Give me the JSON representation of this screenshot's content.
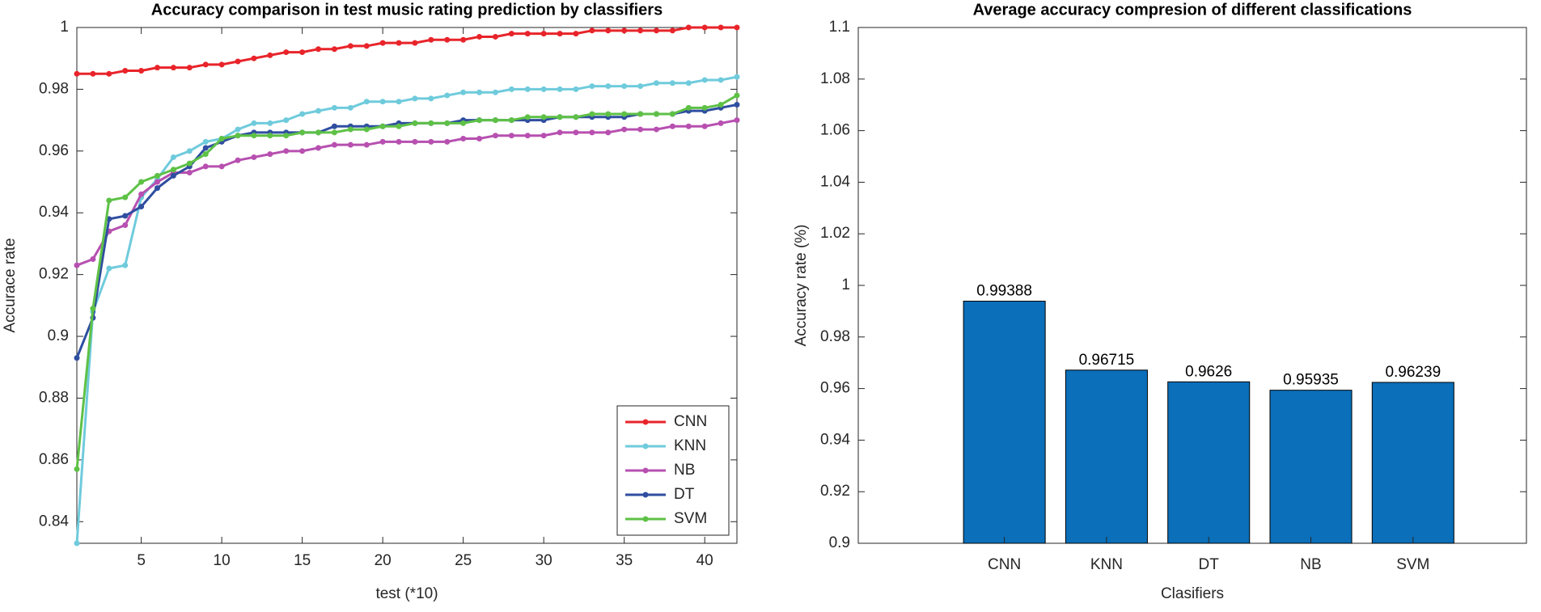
{
  "chart_data": [
    {
      "type": "line",
      "title": "Accuracy comparison in test music rating prediction by classifiers",
      "x_label": "test (*10)",
      "y_label": "Accurace rate",
      "x": [
        1,
        2,
        3,
        4,
        5,
        6,
        7,
        8,
        9,
        10,
        11,
        12,
        13,
        14,
        15,
        16,
        17,
        18,
        19,
        20,
        21,
        22,
        23,
        24,
        25,
        26,
        27,
        28,
        29,
        30,
        31,
        32,
        33,
        34,
        35,
        36,
        37,
        38,
        39,
        40,
        41,
        42
      ],
      "xlim": [
        1,
        42
      ],
      "xticks": [
        5,
        10,
        15,
        20,
        25,
        30,
        35,
        40
      ],
      "ylim": [
        0.833,
        1
      ],
      "yticks": [
        0.84,
        0.86,
        0.88,
        0.9,
        0.92,
        0.94,
        0.96,
        0.98,
        1
      ],
      "legend": "lower right",
      "series": [
        {
          "name": "CNN",
          "color": "#e8242a",
          "values": [
            0.985,
            0.985,
            0.985,
            0.986,
            0.986,
            0.987,
            0.987,
            0.987,
            0.988,
            0.988,
            0.989,
            0.99,
            0.991,
            0.992,
            0.992,
            0.993,
            0.993,
            0.994,
            0.994,
            0.995,
            0.995,
            0.995,
            0.996,
            0.996,
            0.996,
            0.997,
            0.997,
            0.998,
            0.998,
            0.998,
            0.998,
            0.998,
            0.999,
            0.999,
            0.999,
            0.999,
            0.999,
            0.999,
            1.0,
            1.0,
            1.0,
            1.0
          ]
        },
        {
          "name": "KNN",
          "color": "#6fcbdc",
          "values": [
            0.833,
            0.908,
            0.922,
            0.923,
            0.945,
            0.951,
            0.958,
            0.96,
            0.963,
            0.964,
            0.967,
            0.969,
            0.969,
            0.97,
            0.972,
            0.973,
            0.974,
            0.974,
            0.976,
            0.976,
            0.976,
            0.977,
            0.977,
            0.978,
            0.979,
            0.979,
            0.979,
            0.98,
            0.98,
            0.98,
            0.98,
            0.98,
            0.981,
            0.981,
            0.981,
            0.981,
            0.982,
            0.982,
            0.982,
            0.983,
            0.983,
            0.984
          ]
        },
        {
          "name": "NB",
          "color": "#b750b0",
          "values": [
            0.923,
            0.925,
            0.934,
            0.936,
            0.946,
            0.95,
            0.953,
            0.953,
            0.955,
            0.955,
            0.957,
            0.958,
            0.959,
            0.96,
            0.96,
            0.961,
            0.962,
            0.962,
            0.962,
            0.963,
            0.963,
            0.963,
            0.963,
            0.963,
            0.964,
            0.964,
            0.965,
            0.965,
            0.965,
            0.965,
            0.966,
            0.966,
            0.966,
            0.966,
            0.967,
            0.967,
            0.967,
            0.968,
            0.968,
            0.968,
            0.969,
            0.97
          ]
        },
        {
          "name": "DT",
          "color": "#2f4ea0",
          "values": [
            0.893,
            0.906,
            0.938,
            0.939,
            0.942,
            0.948,
            0.952,
            0.955,
            0.961,
            0.963,
            0.965,
            0.966,
            0.966,
            0.966,
            0.966,
            0.966,
            0.968,
            0.968,
            0.968,
            0.968,
            0.969,
            0.969,
            0.969,
            0.969,
            0.97,
            0.97,
            0.97,
            0.97,
            0.97,
            0.97,
            0.971,
            0.971,
            0.971,
            0.971,
            0.971,
            0.972,
            0.972,
            0.972,
            0.973,
            0.973,
            0.974,
            0.975
          ]
        },
        {
          "name": "SVM",
          "color": "#5ec146",
          "values": [
            0.857,
            0.909,
            0.944,
            0.945,
            0.95,
            0.952,
            0.954,
            0.956,
            0.959,
            0.964,
            0.965,
            0.965,
            0.965,
            0.965,
            0.966,
            0.966,
            0.966,
            0.967,
            0.967,
            0.968,
            0.968,
            0.969,
            0.969,
            0.969,
            0.969,
            0.97,
            0.97,
            0.97,
            0.971,
            0.971,
            0.971,
            0.971,
            0.972,
            0.972,
            0.972,
            0.972,
            0.972,
            0.972,
            0.974,
            0.974,
            0.975,
            0.978
          ]
        }
      ]
    },
    {
      "type": "bar",
      "title": "Average accuracy compresion of different classifications",
      "x_label": "Clasifiers",
      "y_label": "Accuracy rate (%)",
      "categories": [
        "CNN",
        "KNN",
        "DT",
        "NB",
        "SVM"
      ],
      "values": [
        0.99388,
        0.96715,
        0.9626,
        0.95935,
        0.96239
      ],
      "color": "#0b6fba",
      "ylim": [
        0.9,
        1.1
      ],
      "yticks": [
        0.9,
        0.92,
        0.94,
        0.96,
        0.98,
        1,
        1.02,
        1.04,
        1.06,
        1.08,
        1.1
      ]
    }
  ]
}
